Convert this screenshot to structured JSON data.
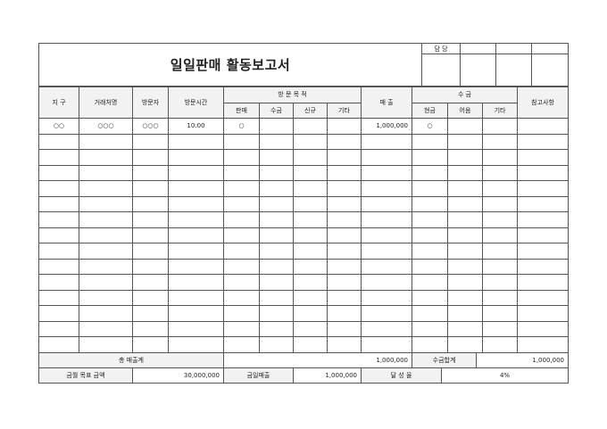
{
  "title": "일일판매 활동보고서",
  "approval": {
    "label": "담 당"
  },
  "headers": {
    "district": "지 구",
    "client": "거래처명",
    "visitor": "방문자",
    "visit_time": "방문시간",
    "purpose": "방 문 목 적",
    "purpose_sub": [
      "판매",
      "수금",
      "신규",
      "기타"
    ],
    "sales": "매 출",
    "collection": "수 금",
    "collection_sub": [
      "현금",
      "어음",
      "기타"
    ],
    "notes": "참고사항"
  },
  "rows": [
    {
      "district": "○○",
      "client": "○○○",
      "visitor": "○○○",
      "visit_time": "10:00",
      "sale": "○",
      "collect": "",
      "new": "",
      "other": "",
      "sales": "1,000,000",
      "cash": "○",
      "bill": "",
      "etc": "",
      "notes": ""
    }
  ],
  "empty_rows": 14,
  "summary": {
    "total_sales_label": "총 매출계",
    "total_sales": "1,000,000",
    "collection_total_label": "수금합계",
    "collection_total": "1,000,000",
    "monthly_target_label": "금월 목표 금액",
    "monthly_target": "30,000,000",
    "today_sales_label": "금일매출",
    "today_sales": "1,000,000",
    "achievement_label": "달 성 율",
    "achievement": "4%"
  }
}
